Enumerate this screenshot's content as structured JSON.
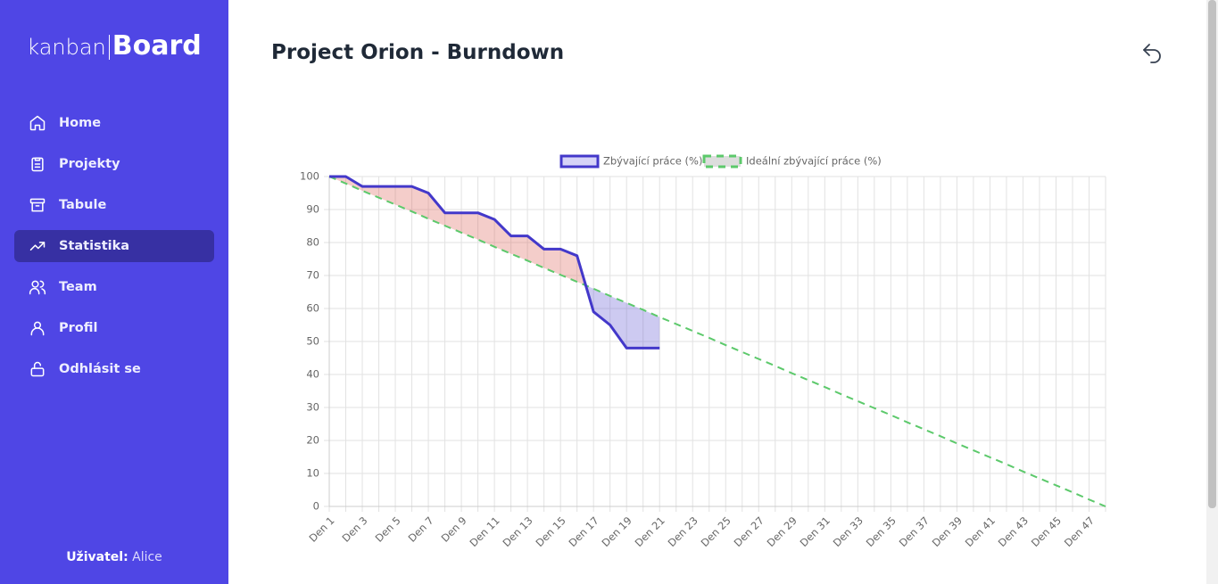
{
  "sidebar": {
    "logo_light": "kanban",
    "logo_bold": "Board",
    "nav": [
      {
        "label": "Home"
      },
      {
        "label": "Projekty"
      },
      {
        "label": "Tabule"
      },
      {
        "label": "Statistika",
        "active": true
      },
      {
        "label": "Team"
      },
      {
        "label": "Profil"
      },
      {
        "label": "Odhlásit se"
      }
    ],
    "user_label": "Uživatel:",
    "user_name": "Alice"
  },
  "header": {
    "title": "Project Orion - Burndown"
  },
  "chart_data": {
    "type": "line",
    "categories": [
      "Den 1",
      null,
      "Den 3",
      null,
      "Den 5",
      null,
      "Den 7",
      null,
      "Den 9",
      null,
      "Den 11",
      null,
      "Den 13",
      null,
      "Den 15",
      null,
      "Den 17",
      null,
      "Den 19",
      null,
      "Den 21",
      null,
      "Den 23",
      null,
      "Den 25",
      null,
      "Den 27",
      null,
      "Den 29",
      null,
      "Den 31",
      null,
      "Den 33",
      null,
      "Den 35",
      null,
      "Den 37",
      null,
      "Den 39",
      null,
      "Den 41",
      null,
      "Den 43",
      null,
      "Den 45",
      null,
      "Den 47",
      null
    ],
    "series": [
      {
        "name": "Zbývající práce (%)",
        "color": "#4338ca",
        "legend_fill": "#d6d3f7",
        "dash": false,
        "values": [
          100,
          100,
          97,
          97,
          97,
          97,
          95,
          89,
          89,
          89,
          87,
          82,
          82,
          78,
          78,
          76,
          59,
          55,
          48,
          48,
          48,
          null,
          null,
          null,
          null,
          null,
          null,
          null,
          null,
          null,
          null,
          null,
          null,
          null,
          null,
          null,
          null,
          null,
          null,
          null,
          null,
          null,
          null,
          null,
          null,
          null,
          null,
          null
        ]
      },
      {
        "name": "Ideální zbývající práce (%)",
        "color": "#5cc96b",
        "legend_fill": "#dddddd",
        "dash": true,
        "values": [
          100,
          97.9,
          95.7,
          93.6,
          91.5,
          89.4,
          87.2,
          85.1,
          83.0,
          80.9,
          78.7,
          76.6,
          74.5,
          72.3,
          70.2,
          68.1,
          66.0,
          63.8,
          61.7,
          59.6,
          57.4,
          55.3,
          53.2,
          51.1,
          48.9,
          46.8,
          44.7,
          42.6,
          40.4,
          38.3,
          36.2,
          34.0,
          31.9,
          29.8,
          27.7,
          25.5,
          23.4,
          21.3,
          19.1,
          17.0,
          14.9,
          12.8,
          10.6,
          8.5,
          6.4,
          4.3,
          2.1,
          0
        ]
      }
    ],
    "fill_colors": {
      "above": "rgba(220,90,80,0.3)",
      "below": "rgba(90,80,210,0.3)"
    },
    "ylim": [
      0,
      100
    ],
    "yticks": [
      0,
      10,
      20,
      30,
      40,
      50,
      60,
      70,
      80,
      90,
      100
    ],
    "grid": true,
    "legend": "top"
  }
}
